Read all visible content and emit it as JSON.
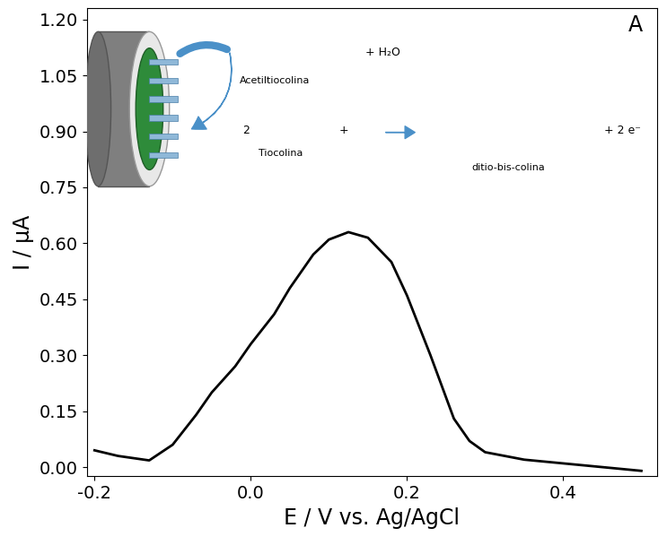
{
  "chart_data": {
    "type": "line",
    "x_label": "E / V vs. Ag/AgCl",
    "y_label": "I / μA",
    "x": [
      -0.2,
      -0.17,
      -0.13,
      -0.1,
      -0.07,
      -0.05,
      -0.02,
      0.0,
      0.03,
      0.05,
      0.08,
      0.1,
      0.125,
      0.15,
      0.18,
      0.2,
      0.23,
      0.26,
      0.28,
      0.3,
      0.35,
      0.4,
      0.45,
      0.5
    ],
    "values": [
      0.045,
      0.03,
      0.018,
      0.06,
      0.14,
      0.2,
      0.27,
      0.33,
      0.41,
      0.48,
      0.57,
      0.61,
      0.63,
      0.615,
      0.55,
      0.46,
      0.3,
      0.13,
      0.07,
      0.04,
      0.02,
      0.01,
      0.0,
      -0.01
    ],
    "color": "#000000",
    "xlim": [
      -0.21,
      0.52
    ],
    "ylim": [
      -0.025,
      1.23
    ],
    "xticks": [
      {
        "value": -0.2,
        "label": "-0.2"
      },
      {
        "value": 0.0,
        "label": "0.0"
      },
      {
        "value": 0.2,
        "label": "0.2"
      },
      {
        "value": 0.4,
        "label": "0.4"
      }
    ],
    "yticks": [
      {
        "value": 0.0,
        "label": "0.00"
      },
      {
        "value": 0.15,
        "label": "0.15"
      },
      {
        "value": 0.3,
        "label": "0.30"
      },
      {
        "value": 0.45,
        "label": "0.45"
      },
      {
        "value": 0.6,
        "label": "0.60"
      },
      {
        "value": 0.75,
        "label": "0.75"
      },
      {
        "value": 0.9,
        "label": "0.90"
      },
      {
        "value": 1.05,
        "label": "1.05"
      },
      {
        "value": 1.2,
        "label": "1.20"
      }
    ],
    "grid": false,
    "annotations": [
      "A",
      "Acetiltiocolina",
      "+ H₂O",
      "2",
      "Tiocolina",
      "+",
      "ditio-bis-colina",
      "+ 2 e⁻"
    ]
  }
}
